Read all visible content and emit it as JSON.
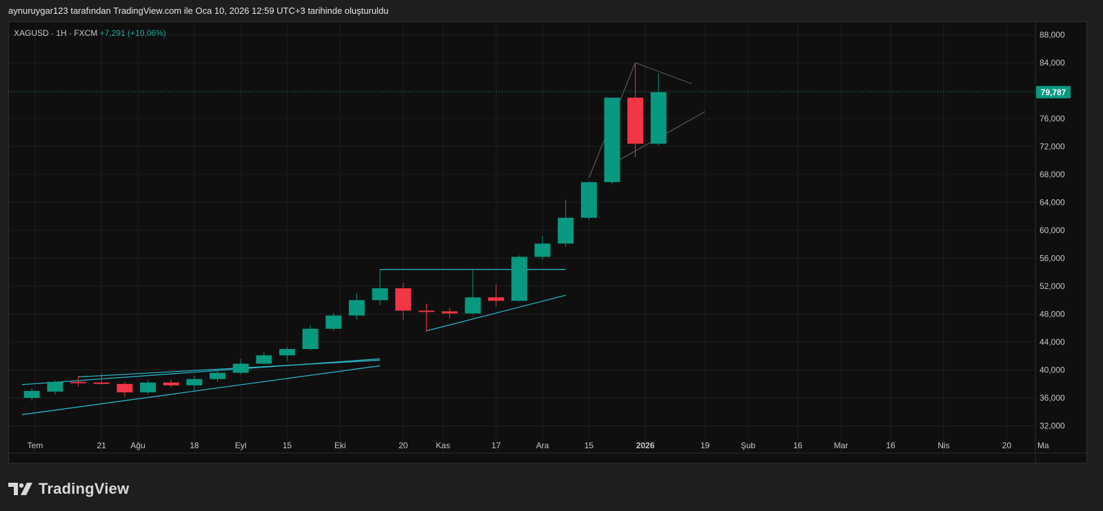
{
  "header": {
    "attribution": "aynuruygar123 tarafından TradingView.com ile Oca 10, 2026 12:59 UTC+3 tarihinde oluşturuldu"
  },
  "legend": {
    "symbol": "XAGUSD · 1H · FXCM",
    "change": "+7,291 (+10,06%)"
  },
  "brand": {
    "name": "TradingView"
  },
  "colors": {
    "up": "#089981",
    "down": "#f23645",
    "trendline": "#2ab3c7",
    "last_price_bg": "#089981"
  },
  "chart_data": {
    "type": "candlestick",
    "symbol": "XAGUSD",
    "interval": "1H",
    "source": "FXCM",
    "last_price": 79.787,
    "last_price_label": "79,787",
    "y_range": [
      30.5,
      90.0
    ],
    "y_ticks": [
      {
        "value": 88,
        "label": "88,000"
      },
      {
        "value": 84,
        "label": "84,000"
      },
      {
        "value": 80,
        "label": "80,000"
      },
      {
        "value": 76,
        "label": "76,000"
      },
      {
        "value": 72,
        "label": "72,000"
      },
      {
        "value": 68,
        "label": "68,000"
      },
      {
        "value": 64,
        "label": "64,000"
      },
      {
        "value": 60,
        "label": "60,000"
      },
      {
        "value": 56,
        "label": "56,000"
      },
      {
        "value": 52,
        "label": "52,000"
      },
      {
        "value": 48,
        "label": "48,000"
      },
      {
        "value": 44,
        "label": "44,000"
      },
      {
        "value": 40,
        "label": "40,000"
      },
      {
        "value": 36,
        "label": "36,000"
      },
      {
        "value": 32,
        "label": "32,000"
      }
    ],
    "x_ticks": [
      {
        "date": "2025-07-01",
        "label": "Tem",
        "bold": false
      },
      {
        "date": "2025-07-21",
        "label": "21",
        "bold": false
      },
      {
        "date": "2025-08-01",
        "label": "Ağu",
        "bold": false
      },
      {
        "date": "2025-08-18",
        "label": "18",
        "bold": false
      },
      {
        "date": "2025-09-01",
        "label": "Eyl",
        "bold": false
      },
      {
        "date": "2025-09-15",
        "label": "15",
        "bold": false
      },
      {
        "date": "2025-10-01",
        "label": "Eki",
        "bold": false
      },
      {
        "date": "2025-10-20",
        "label": "20",
        "bold": false
      },
      {
        "date": "2025-11-01",
        "label": "Kas",
        "bold": false
      },
      {
        "date": "2025-11-17",
        "label": "17",
        "bold": false
      },
      {
        "date": "2025-12-01",
        "label": "Ara",
        "bold": false
      },
      {
        "date": "2025-12-15",
        "label": "15",
        "bold": false
      },
      {
        "date": "2026-01-01",
        "label": "2026",
        "bold": true
      },
      {
        "date": "2026-01-19",
        "label": "19",
        "bold": false
      },
      {
        "date": "2026-02-01",
        "label": "Şub",
        "bold": false
      },
      {
        "date": "2026-02-16",
        "label": "16",
        "bold": false
      },
      {
        "date": "2026-03-01",
        "label": "Mar",
        "bold": false
      },
      {
        "date": "2026-03-16",
        "label": "16",
        "bold": false
      },
      {
        "date": "2026-04-01",
        "label": "Nis",
        "bold": false
      },
      {
        "date": "2026-04-20",
        "label": "20",
        "bold": false
      },
      {
        "date": "2026-05-01",
        "label": "Ma",
        "bold": false
      }
    ],
    "candles": [
      {
        "date": "2025-06-30",
        "open": 36.0,
        "high": 37.4,
        "low": 35.6,
        "close": 37.0
      },
      {
        "date": "2025-07-07",
        "open": 36.9,
        "high": 38.5,
        "low": 36.5,
        "close": 38.3
      },
      {
        "date": "2025-07-14",
        "open": 38.3,
        "high": 39.2,
        "low": 37.6,
        "close": 38.1
      },
      {
        "date": "2025-07-21",
        "open": 38.2,
        "high": 39.5,
        "low": 37.9,
        "close": 38.1
      },
      {
        "date": "2025-07-28",
        "open": 38.0,
        "high": 38.3,
        "low": 36.2,
        "close": 36.8
      },
      {
        "date": "2025-08-04",
        "open": 36.8,
        "high": 38.6,
        "low": 36.5,
        "close": 38.2
      },
      {
        "date": "2025-08-11",
        "open": 38.2,
        "high": 38.6,
        "low": 37.5,
        "close": 37.8
      },
      {
        "date": "2025-08-18",
        "open": 37.8,
        "high": 39.2,
        "low": 37.0,
        "close": 38.7
      },
      {
        "date": "2025-08-25",
        "open": 38.7,
        "high": 40.0,
        "low": 38.3,
        "close": 39.6
      },
      {
        "date": "2025-09-01",
        "open": 39.6,
        "high": 41.6,
        "low": 39.4,
        "close": 40.9
      },
      {
        "date": "2025-09-08",
        "open": 40.9,
        "high": 42.5,
        "low": 40.8,
        "close": 42.1
      },
      {
        "date": "2025-09-15",
        "open": 42.1,
        "high": 43.3,
        "low": 41.3,
        "close": 43.0
      },
      {
        "date": "2025-09-22",
        "open": 43.0,
        "high": 46.4,
        "low": 42.8,
        "close": 45.9
      },
      {
        "date": "2025-09-29",
        "open": 45.9,
        "high": 48.2,
        "low": 45.6,
        "close": 47.8
      },
      {
        "date": "2025-10-06",
        "open": 47.8,
        "high": 51.0,
        "low": 47.2,
        "close": 50.0
      },
      {
        "date": "2025-10-13",
        "open": 50.0,
        "high": 54.4,
        "low": 49.3,
        "close": 51.7
      },
      {
        "date": "2025-10-20",
        "open": 51.7,
        "high": 52.5,
        "low": 47.2,
        "close": 48.5
      },
      {
        "date": "2025-10-27",
        "open": 48.5,
        "high": 49.5,
        "low": 45.5,
        "close": 48.4
      },
      {
        "date": "2025-11-03",
        "open": 48.4,
        "high": 48.9,
        "low": 47.4,
        "close": 48.1
      },
      {
        "date": "2025-11-10",
        "open": 48.1,
        "high": 54.3,
        "low": 48.0,
        "close": 50.4
      },
      {
        "date": "2025-11-17",
        "open": 50.4,
        "high": 52.3,
        "low": 49.1,
        "close": 49.9
      },
      {
        "date": "2025-11-24",
        "open": 49.9,
        "high": 56.4,
        "low": 49.8,
        "close": 56.2
      },
      {
        "date": "2025-12-01",
        "open": 56.2,
        "high": 59.2,
        "low": 55.8,
        "close": 58.1
      },
      {
        "date": "2025-12-08",
        "open": 58.1,
        "high": 64.4,
        "low": 57.6,
        "close": 61.8
      },
      {
        "date": "2025-12-15",
        "open": 61.8,
        "high": 67.0,
        "low": 61.5,
        "close": 66.9
      },
      {
        "date": "2025-12-22",
        "open": 66.9,
        "high": 79.0,
        "low": 66.6,
        "close": 79.0
      },
      {
        "date": "2025-12-29",
        "open": 79.0,
        "high": 83.9,
        "low": 70.5,
        "close": 72.4
      },
      {
        "date": "2026-01-05",
        "open": 72.4,
        "high": 82.5,
        "low": 72.2,
        "close": 79.787
      }
    ],
    "trendlines": [
      {
        "from": {
          "date": "2025-06-27",
          "value": 37.9
        },
        "to": {
          "date": "2025-10-13",
          "value": 41.6
        }
      },
      {
        "from": {
          "date": "2025-07-14",
          "value": 39.0
        },
        "to": {
          "date": "2025-10-13",
          "value": 41.4
        }
      },
      {
        "from": {
          "date": "2025-06-27",
          "value": 33.6
        },
        "to": {
          "date": "2025-10-13",
          "value": 40.6
        }
      },
      {
        "from": {
          "date": "2025-10-13",
          "value": 54.4
        },
        "to": {
          "date": "2025-12-08",
          "value": 54.4
        }
      },
      {
        "from": {
          "date": "2025-10-27",
          "value": 45.6
        },
        "to": {
          "date": "2025-12-08",
          "value": 50.7
        }
      }
    ],
    "triangle_lines": [
      {
        "from": {
          "date": "2025-12-15",
          "value": 67.5
        },
        "to": {
          "date": "2025-12-29",
          "value": 84.0
        }
      },
      {
        "from": {
          "date": "2025-12-29",
          "value": 84.0
        },
        "to": {
          "date": "2026-01-15",
          "value": 81.0
        }
      },
      {
        "from": {
          "date": "2025-12-22",
          "value": 69.5
        },
        "to": {
          "date": "2026-01-19",
          "value": 77.0
        }
      }
    ]
  }
}
